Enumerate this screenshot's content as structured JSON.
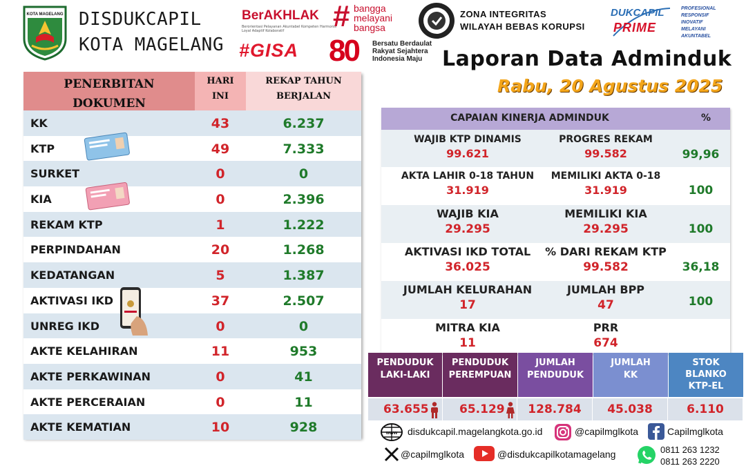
{
  "header": {
    "agency_line1": "DISDUKCAPIL",
    "agency_line2": "KOTA MAGELANG",
    "crest_text": "KOTA MAGELANG",
    "berakhlak": "BerAKHLAK",
    "berakhlak_sub": "Berorientasi Pelayanan Akuntabel Kompeten Harmonis Loyal Adaptif Kolaboratif",
    "bangga_hash": "#",
    "bangga_lines": [
      "bangga",
      "melayani",
      "bangsa"
    ],
    "gisa": "#GISA",
    "ri80": "80",
    "ri80_lines": [
      "Bersatu Berdaulat",
      "Rakyat Sejahtera",
      "Indonesia Maju"
    ],
    "zi_line1": "ZONA INTEGRITAS",
    "zi_line2": "WILAYAH BEBAS KORUPSI",
    "prime_top": "DUKCAPIL",
    "prime_bottom": "PRIME",
    "values_lines": [
      "PROFESIONAL",
      "RESPONSIF",
      "INOVATIF",
      "MELAYANI",
      "AKUNTABEL"
    ],
    "report_title": "Laporan Data Adminduk",
    "report_date": "Rabu, 20 Agustus 2025"
  },
  "documents": {
    "col_document": [
      "PENERBITAN",
      "DOKUMEN"
    ],
    "col_today": [
      "HARI",
      "INI"
    ],
    "col_total": [
      "REKAP TAHUN",
      "BERJALAN"
    ],
    "rows": [
      {
        "name": "KK",
        "today": "43",
        "total": "6.237"
      },
      {
        "name": "KTP",
        "today": "49",
        "total": "7.333"
      },
      {
        "name": "SURKET",
        "today": "0",
        "total": "0"
      },
      {
        "name": "KIA",
        "today": "0",
        "total": "2.396"
      },
      {
        "name": "REKAM KTP",
        "today": "1",
        "total": "1.222"
      },
      {
        "name": "PERPINDAHAN",
        "today": "20",
        "total": "1.268"
      },
      {
        "name": "KEDATANGAN",
        "today": "5",
        "total": "1.387"
      },
      {
        "name": "AKTIVASI IKD",
        "today": "37",
        "total": "2.507"
      },
      {
        "name": "UNREG IKD",
        "today": "0",
        "total": "0"
      },
      {
        "name": "AKTE KELAHIRAN",
        "today": "11",
        "total": "953"
      },
      {
        "name": "AKTE PERKAWINAN",
        "today": "0",
        "total": "41"
      },
      {
        "name": "AKTE PERCERAIAN",
        "today": "0",
        "total": "11"
      },
      {
        "name": "AKTE KEMATIAN",
        "today": "10",
        "total": "928"
      }
    ]
  },
  "performance": {
    "title": "CAPAIAN KINERJA ADMINDUK",
    "pct_header": "%",
    "rows": [
      {
        "l1": "WAJIB KTP DINAMIS",
        "v1": "99.621",
        "l2": "PROGRES REKAM",
        "v2": "99.582",
        "pct": "99,96"
      },
      {
        "l1": "AKTA LAHIR 0-18 TAHUN",
        "v1": "31.919",
        "l2": "MEMILIKI AKTA 0-18",
        "v2": "31.919",
        "pct": "100"
      },
      {
        "l1": "WAJIB KIA",
        "v1": "29.295",
        "l2": "MEMILIKI KIA",
        "v2": "29.295",
        "pct": "100"
      },
      {
        "l1": "AKTIVASI IKD TOTAL",
        "v1": "36.025",
        "l2": "% DARI REKAM KTP",
        "v2": "99.582",
        "pct": "36,18"
      },
      {
        "l1": "JUMLAH KELURAHAN",
        "v1": "17",
        "l2": "JUMLAH BPP",
        "v2": "47",
        "pct": "100"
      },
      {
        "l1": "MITRA KIA",
        "v1": "11",
        "l2": "PRR",
        "v2": "674",
        "pct": ""
      }
    ]
  },
  "population": {
    "items": [
      {
        "label": [
          "PENDUDUK",
          "LAKI-LAKI"
        ],
        "value": "63.655",
        "color": "#6a2c5f"
      },
      {
        "label": [
          "PENDUDUK",
          "PEREMPUAN"
        ],
        "value": "65.129",
        "color": "#6a2c5f"
      },
      {
        "label": [
          "JUMLAH",
          "PENDUDUK"
        ],
        "value": "128.784",
        "color": "#7a4ea0"
      },
      {
        "label": [
          "JUMLAH",
          "KK"
        ],
        "value": "45.038",
        "color": "#7b8fd0"
      },
      {
        "label": [
          "STOK",
          "BLANKO",
          "KTP-EL"
        ],
        "value": "6.110",
        "color": "#4d86c2"
      }
    ]
  },
  "contacts": {
    "website": "disdukcapil.magelangkota.go.id",
    "instagram": "@capilmglkota",
    "facebook": "Capilmglkota",
    "x": "@capilmglkota",
    "youtube": "@disdukcapilkotamagelang",
    "phone1": "0811 263 1232",
    "phone2": "0811 263 2220"
  }
}
